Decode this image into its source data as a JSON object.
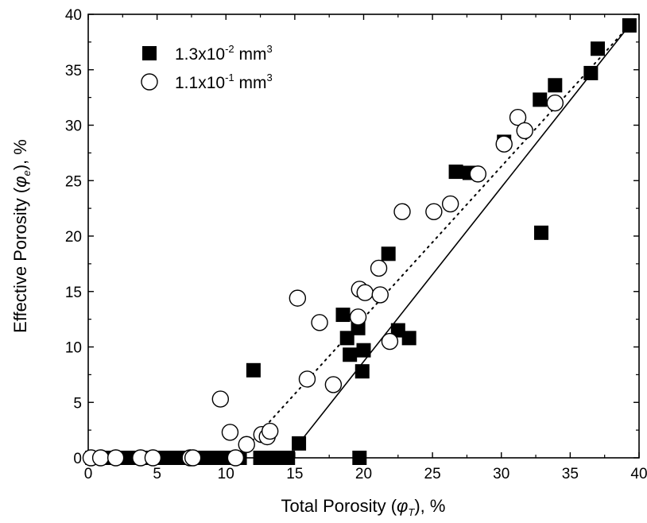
{
  "chart_data": {
    "type": "scatter",
    "xlim": [
      0,
      40
    ],
    "ylim": [
      0,
      40
    ],
    "xticks": [
      0,
      5,
      10,
      15,
      20,
      25,
      30,
      35,
      40
    ],
    "yticks": [
      0,
      5,
      10,
      15,
      20,
      25,
      30,
      35,
      40
    ],
    "xlabel": {
      "pre": "Total Porosity (",
      "sym": "φ",
      "sub": "T",
      "post": "), %"
    },
    "ylabel": {
      "pre": "Effective Porosity (",
      "sym": "φ",
      "sub": "e",
      "post": "), %"
    },
    "grid": false,
    "legend_position": "top-left",
    "series": [
      {
        "name": "1.3x10-2 mm3",
        "legend": {
          "base": "1.3x10",
          "exp": "-2",
          "unit": " mm",
          "unit_exp": "3"
        },
        "marker": "filled-square",
        "color": "#000000",
        "points": [
          [
            0.3,
            0
          ],
          [
            1,
            0
          ],
          [
            2,
            0
          ],
          [
            3,
            0
          ],
          [
            4,
            0
          ],
          [
            5,
            0
          ],
          [
            6,
            0
          ],
          [
            7,
            0
          ],
          [
            8,
            0
          ],
          [
            9,
            0
          ],
          [
            10,
            0
          ],
          [
            11,
            0
          ],
          [
            12.5,
            0
          ],
          [
            13.5,
            0
          ],
          [
            14.5,
            0
          ],
          [
            15.3,
            1.3
          ],
          [
            12,
            7.9
          ],
          [
            18.5,
            12.9
          ],
          [
            18.8,
            10.8
          ],
          [
            19,
            9.3
          ],
          [
            19.6,
            11.7
          ],
          [
            19.7,
            0
          ],
          [
            20,
            9.7
          ],
          [
            19.9,
            7.8
          ],
          [
            21.8,
            18.4
          ],
          [
            22.5,
            11.5
          ],
          [
            23.3,
            10.8
          ],
          [
            26.7,
            25.8
          ],
          [
            27.7,
            25.7
          ],
          [
            30.2,
            28.5
          ],
          [
            32.8,
            32.3
          ],
          [
            32.9,
            20.3
          ],
          [
            33.9,
            33.6
          ],
          [
            36.5,
            34.7
          ],
          [
            37,
            36.9
          ],
          [
            39.3,
            39
          ]
        ]
      },
      {
        "name": "1.1x10-1 mm3",
        "legend": {
          "base": "1.1x10",
          "exp": "-1",
          "unit": " mm",
          "unit_exp": "3"
        },
        "marker": "open-circle",
        "color": "#000000",
        "points": [
          [
            0.2,
            0
          ],
          [
            0.9,
            0
          ],
          [
            2,
            0
          ],
          [
            3.8,
            0
          ],
          [
            4.7,
            0
          ],
          [
            7.4,
            0
          ],
          [
            7.6,
            0
          ],
          [
            10.7,
            0
          ],
          [
            9.6,
            5.3
          ],
          [
            10.3,
            2.3
          ],
          [
            11.5,
            1.2
          ],
          [
            12.6,
            2.1
          ],
          [
            13,
            1.9
          ],
          [
            13.2,
            2.4
          ],
          [
            15.2,
            14.4
          ],
          [
            15.9,
            7.1
          ],
          [
            16.8,
            12.2
          ],
          [
            17.8,
            6.6
          ],
          [
            19.7,
            15.2
          ],
          [
            19.6,
            12.7
          ],
          [
            20.1,
            14.9
          ],
          [
            21.1,
            17.1
          ],
          [
            21.2,
            14.7
          ],
          [
            21.9,
            10.5
          ],
          [
            22.8,
            22.2
          ],
          [
            25.1,
            22.2
          ],
          [
            26.3,
            22.9
          ],
          [
            28.3,
            25.6
          ],
          [
            30.2,
            28.3
          ],
          [
            31.2,
            30.7
          ],
          [
            31.7,
            29.5
          ],
          [
            33.9,
            32
          ]
        ]
      }
    ],
    "fit_lines": [
      {
        "style": "solid",
        "points": [
          [
            15.3,
            1.3
          ],
          [
            39.3,
            39
          ]
        ]
      },
      {
        "style": "dotted",
        "points": [
          [
            11.3,
            0.7
          ],
          [
            39.3,
            39
          ]
        ]
      }
    ]
  }
}
